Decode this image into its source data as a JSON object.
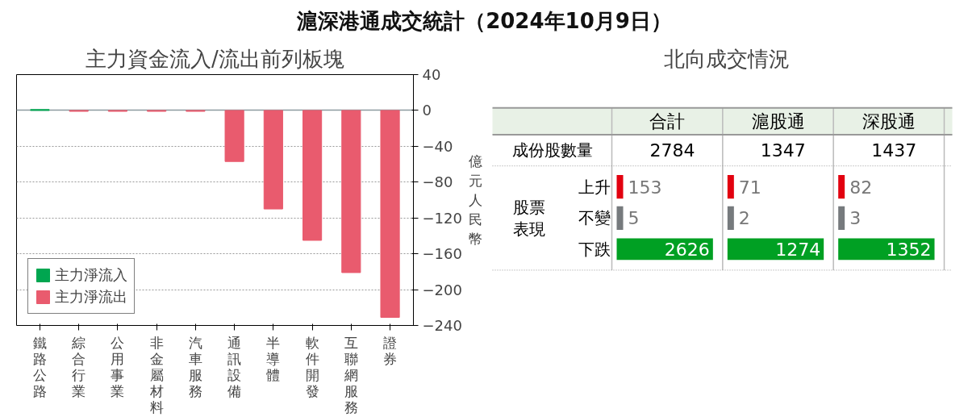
{
  "chart_data": [
    {
      "type": "bar",
      "title": "滬深港通成交統計（2024年10月9日）",
      "subtitle": "主力資金流入/流出前列板塊",
      "ylabel": "億元人民幣",
      "categories": [
        "鐵路公路",
        "綜合行業",
        "公用事業",
        "非金屬材料",
        "汽車服務",
        "通訊設備",
        "半導體",
        "軟件開發",
        "互聯網服務",
        "證券"
      ],
      "series": [
        {
          "name": "主力淨流入",
          "color": "#00a650",
          "values": [
            1,
            null,
            null,
            null,
            null,
            null,
            null,
            null,
            null,
            null
          ]
        },
        {
          "name": "主力淨流出",
          "color": "#e95b6e",
          "values": [
            null,
            -1,
            -1,
            -1,
            -1,
            -57,
            -110,
            -145,
            -181,
            -231
          ]
        }
      ],
      "ylim": [
        -240,
        40
      ],
      "yticks": [
        -240,
        -200,
        -160,
        -120,
        -80,
        -40,
        0,
        40
      ],
      "grid": "y",
      "legend": "bottom left"
    },
    {
      "type": "other",
      "title": "北向成交情況",
      "categories": [
        "合計",
        "滬股通",
        "深股通"
      ],
      "series": [
        {
          "name": "成份股數量",
          "values": [
            2784,
            1347,
            1437
          ]
        },
        {
          "name": "上升",
          "color": "#e2000f",
          "values": [
            153,
            71,
            82
          ]
        },
        {
          "name": "不變",
          "color": "#767a7d",
          "values": [
            5,
            2,
            3
          ]
        },
        {
          "name": "下跌",
          "color": "#00a023",
          "values": [
            2626,
            1274,
            1352
          ]
        }
      ],
      "annotations": [
        "股票表現"
      ],
      "data_labels": true
    }
  ]
}
